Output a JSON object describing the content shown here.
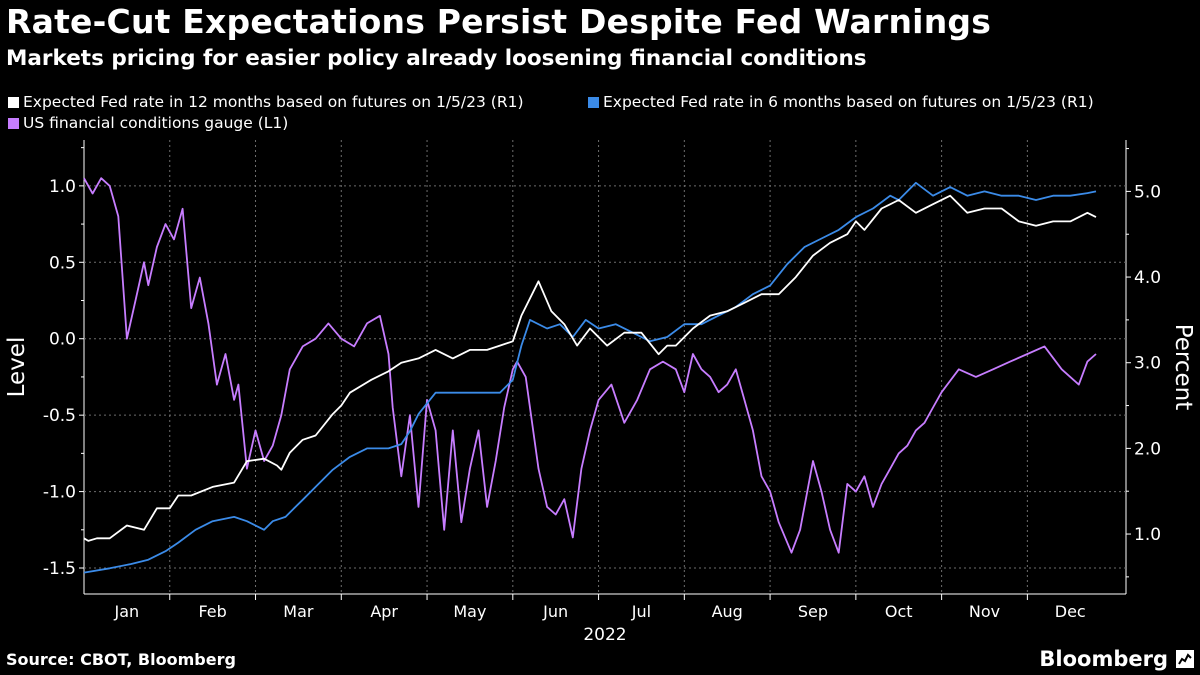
{
  "header": {
    "title": "Rate-Cut Expectations Persist Despite Fed Warnings",
    "subtitle": "Markets pricing for easier policy already loosening financial conditions"
  },
  "footer": {
    "source": "Source: CBOT, Bloomberg",
    "brand": "Bloomberg"
  },
  "colors": {
    "background": "#000000",
    "fed12": "#ffffff",
    "fed6": "#3b8be8",
    "gauge": "#c77dff",
    "grid": "#6e6e6e"
  },
  "chart_data": {
    "type": "line",
    "left_axis": {
      "label": "Level",
      "ticks": [
        "1.0",
        "0.5",
        "0.0",
        "-0.5",
        "-1.0",
        "-1.5"
      ],
      "tick_values": [
        1.0,
        0.5,
        0.0,
        -0.5,
        -1.0,
        -1.5
      ],
      "range": [
        -1.67,
        1.3
      ]
    },
    "right_axis": {
      "label": "Percent",
      "ticks": [
        "5.0",
        "4.0",
        "3.0",
        "2.0",
        "1.0"
      ],
      "tick_values": [
        5.0,
        4.0,
        3.0,
        2.0,
        1.0
      ],
      "range": [
        0.3,
        5.6
      ]
    },
    "x_axis": {
      "months": [
        "Jan",
        "Feb",
        "Mar",
        "Apr",
        "May",
        "Jun",
        "Jul",
        "Aug",
        "Sep",
        "Oct",
        "Nov",
        "Dec"
      ],
      "year": "2022",
      "range_months": [
        0,
        12.15
      ]
    },
    "grid": true,
    "legend_position": "top-left",
    "series": [
      {
        "name": "Expected Fed rate in 12 months based on futures on 1/5/23 (R1)",
        "axis": "right",
        "color": "#ffffff",
        "x": [
          0.0,
          0.05,
          0.15,
          0.3,
          0.5,
          0.7,
          0.85,
          1.0,
          1.1,
          1.25,
          1.5,
          1.75,
          1.9,
          2.1,
          2.25,
          2.3,
          2.4,
          2.55,
          2.7,
          2.9,
          3.0,
          3.1,
          3.35,
          3.55,
          3.7,
          3.9,
          4.1,
          4.3,
          4.5,
          4.7,
          4.85,
          5.0,
          5.1,
          5.3,
          5.45,
          5.6,
          5.75,
          5.9,
          6.1,
          6.3,
          6.5,
          6.7,
          6.8,
          6.9,
          7.1,
          7.3,
          7.5,
          7.7,
          7.9,
          8.1,
          8.3,
          8.5,
          8.7,
          8.9,
          9.0,
          9.1,
          9.3,
          9.5,
          9.7,
          9.9,
          10.1,
          10.3,
          10.5,
          10.7,
          10.9,
          11.1,
          11.3,
          11.5,
          11.7,
          11.8
        ],
        "values": [
          0.95,
          0.92,
          0.95,
          0.95,
          1.1,
          1.05,
          1.3,
          1.3,
          1.45,
          1.45,
          1.55,
          1.6,
          1.85,
          1.88,
          1.8,
          1.75,
          1.95,
          2.1,
          2.15,
          2.4,
          2.5,
          2.65,
          2.8,
          2.9,
          3.0,
          3.05,
          3.15,
          3.05,
          3.15,
          3.15,
          3.2,
          3.25,
          3.55,
          3.95,
          3.6,
          3.45,
          3.2,
          3.4,
          3.2,
          3.35,
          3.35,
          3.1,
          3.2,
          3.2,
          3.4,
          3.55,
          3.6,
          3.7,
          3.8,
          3.8,
          4.0,
          4.25,
          4.4,
          4.5,
          4.65,
          4.55,
          4.8,
          4.9,
          4.75,
          4.85,
          4.95,
          4.75,
          4.8,
          4.8,
          4.65,
          4.6,
          4.65,
          4.65,
          4.75,
          4.7
        ]
      },
      {
        "name": "Expected Fed rate in 6 months based on futures on 1/5/23 (R1)",
        "axis": "right",
        "color": "#3b8be8",
        "x": [
          0.0,
          0.3,
          0.55,
          0.75,
          0.95,
          1.1,
          1.3,
          1.5,
          1.75,
          1.9,
          2.1,
          2.2,
          2.35,
          2.45,
          2.55,
          2.7,
          2.9,
          3.1,
          3.3,
          3.55,
          3.7,
          3.8,
          3.9,
          4.1,
          4.3,
          4.5,
          4.7,
          4.85,
          5.0,
          5.1,
          5.2,
          5.4,
          5.55,
          5.7,
          5.85,
          6.0,
          6.2,
          6.4,
          6.6,
          6.8,
          7.0,
          7.2,
          7.4,
          7.6,
          7.8,
          8.0,
          8.2,
          8.4,
          8.6,
          8.8,
          9.0,
          9.2,
          9.4,
          9.5,
          9.7,
          9.9,
          10.1,
          10.3,
          10.5,
          10.7,
          10.9,
          11.1,
          11.3,
          11.5,
          11.7,
          11.8
        ],
        "values": [
          0.55,
          0.6,
          0.65,
          0.7,
          0.8,
          0.9,
          1.05,
          1.15,
          1.2,
          1.15,
          1.05,
          1.15,
          1.2,
          1.3,
          1.4,
          1.55,
          1.75,
          1.9,
          2.0,
          2.0,
          2.05,
          2.2,
          2.4,
          2.65,
          2.65,
          2.65,
          2.65,
          2.65,
          2.8,
          3.2,
          3.5,
          3.4,
          3.45,
          3.3,
          3.5,
          3.4,
          3.45,
          3.35,
          3.25,
          3.3,
          3.45,
          3.45,
          3.55,
          3.65,
          3.8,
          3.9,
          4.15,
          4.35,
          4.45,
          4.55,
          4.7,
          4.8,
          4.95,
          4.9,
          5.1,
          4.95,
          5.05,
          4.95,
          5.0,
          4.95,
          4.95,
          4.9,
          4.95,
          4.95,
          4.98,
          5.0
        ]
      },
      {
        "name": "US financial conditions gauge (L1)",
        "axis": "left",
        "color": "#c77dff",
        "x": [
          0.0,
          0.1,
          0.2,
          0.3,
          0.4,
          0.5,
          0.6,
          0.7,
          0.75,
          0.85,
          0.95,
          1.05,
          1.15,
          1.25,
          1.35,
          1.45,
          1.55,
          1.65,
          1.75,
          1.8,
          1.9,
          2.0,
          2.1,
          2.2,
          2.3,
          2.4,
          2.55,
          2.7,
          2.85,
          3.0,
          3.15,
          3.3,
          3.45,
          3.55,
          3.6,
          3.7,
          3.8,
          3.9,
          4.0,
          4.1,
          4.2,
          4.3,
          4.4,
          4.5,
          4.6,
          4.7,
          4.8,
          4.9,
          5.0,
          5.05,
          5.15,
          5.3,
          5.4,
          5.5,
          5.6,
          5.7,
          5.8,
          5.9,
          6.0,
          6.15,
          6.3,
          6.45,
          6.6,
          6.75,
          6.9,
          7.0,
          7.1,
          7.2,
          7.3,
          7.4,
          7.5,
          7.6,
          7.7,
          7.8,
          7.9,
          8.0,
          8.1,
          8.25,
          8.35,
          8.5,
          8.6,
          8.7,
          8.8,
          8.9,
          9.0,
          9.1,
          9.2,
          9.3,
          9.4,
          9.5,
          9.6,
          9.7,
          9.8,
          9.9,
          10.0,
          10.2,
          10.4,
          10.6,
          10.8,
          11.0,
          11.2,
          11.4,
          11.6,
          11.7,
          11.8
        ],
        "values": [
          1.05,
          0.95,
          1.05,
          1.0,
          0.8,
          0.0,
          0.25,
          0.5,
          0.35,
          0.6,
          0.75,
          0.65,
          0.85,
          0.2,
          0.4,
          0.1,
          -0.3,
          -0.1,
          -0.4,
          -0.3,
          -0.85,
          -0.6,
          -0.8,
          -0.7,
          -0.5,
          -0.2,
          -0.05,
          0.0,
          0.1,
          0.0,
          -0.05,
          0.1,
          0.15,
          -0.1,
          -0.45,
          -0.9,
          -0.5,
          -1.1,
          -0.4,
          -0.6,
          -1.25,
          -0.6,
          -1.2,
          -0.85,
          -0.6,
          -1.1,
          -0.8,
          -0.45,
          -0.2,
          -0.15,
          -0.25,
          -0.85,
          -1.1,
          -1.15,
          -1.05,
          -1.3,
          -0.85,
          -0.6,
          -0.4,
          -0.3,
          -0.55,
          -0.4,
          -0.2,
          -0.15,
          -0.2,
          -0.35,
          -0.1,
          -0.2,
          -0.25,
          -0.35,
          -0.3,
          -0.2,
          -0.4,
          -0.6,
          -0.9,
          -1.0,
          -1.2,
          -1.4,
          -1.25,
          -0.8,
          -1.0,
          -1.25,
          -1.4,
          -0.95,
          -1.0,
          -0.9,
          -1.1,
          -0.95,
          -0.85,
          -0.75,
          -0.7,
          -0.6,
          -0.55,
          -0.45,
          -0.35,
          -0.2,
          -0.25,
          -0.2,
          -0.15,
          -0.1,
          -0.05,
          -0.2,
          -0.3,
          -0.15,
          -0.1
        ]
      }
    ]
  }
}
